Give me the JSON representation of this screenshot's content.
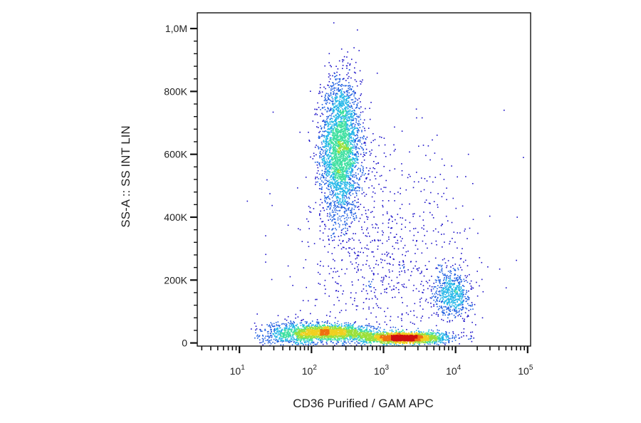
{
  "chart_data": {
    "type": "scatter",
    "subtype": "flow-cytometry-density-dot-plot",
    "title": "",
    "xlabel": "CD36 Purified / GAM APC",
    "ylabel": "SS-A :: SS INT LIN",
    "x_scale": "log",
    "x_range": [
      2.6,
      110000
    ],
    "y_scale": "linear",
    "y_range": [
      -10000,
      1050000
    ],
    "x_ticks": [
      {
        "value": 10,
        "base": "10",
        "exp": "1"
      },
      {
        "value": 100,
        "base": "10",
        "exp": "2"
      },
      {
        "value": 1000,
        "base": "10",
        "exp": "3"
      },
      {
        "value": 10000,
        "base": "10",
        "exp": "4"
      },
      {
        "value": 100000,
        "base": "10",
        "exp": "5"
      }
    ],
    "y_ticks": [
      {
        "value": 0,
        "label": "0"
      },
      {
        "value": 200000,
        "label": "200K"
      },
      {
        "value": 400000,
        "label": "400K"
      },
      {
        "value": 600000,
        "label": "600K"
      },
      {
        "value": 800000,
        "label": "800K"
      },
      {
        "value": 1000000,
        "label": "1,0M"
      }
    ],
    "grid": false,
    "legend": "none",
    "color_scale": [
      "#1a0fc8",
      "#1f5fe0",
      "#22b6e8",
      "#3fe0a0",
      "#9be03a",
      "#f0d020",
      "#f07010",
      "#d01010"
    ],
    "populations": [
      {
        "x_center": 250,
        "y_center": 620000,
        "x_spread_log": 0.14,
        "y_spread": 110000,
        "weight": 0.33
      },
      {
        "x_center": 180,
        "y_center": 35000,
        "x_spread_log": 0.28,
        "y_spread": 12000,
        "weight": 0.18
      },
      {
        "x_center": 1800,
        "y_center": 18000,
        "x_spread_log": 0.3,
        "y_spread": 9000,
        "weight": 0.25
      },
      {
        "x_center": 9000,
        "y_center": 160000,
        "x_spread_log": 0.13,
        "y_spread": 40000,
        "weight": 0.07
      },
      {
        "x_center": 1000,
        "y_center": 250000,
        "x_spread_log": 0.6,
        "y_spread": 200000,
        "weight": 0.1
      },
      {
        "x_center": 60,
        "y_center": 30000,
        "x_spread_log": 0.25,
        "y_spread": 20000,
        "weight": 0.07
      }
    ]
  }
}
